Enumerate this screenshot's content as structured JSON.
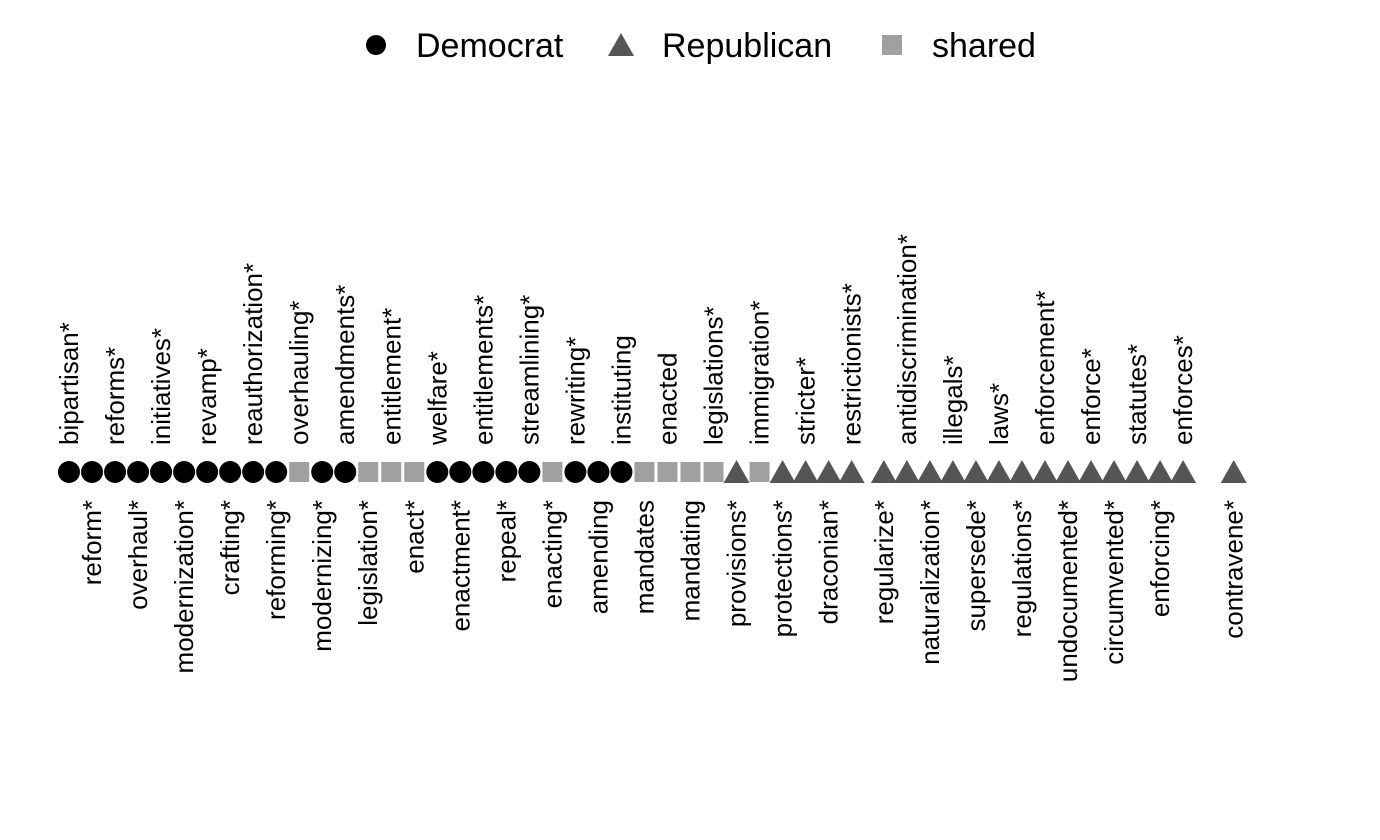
{
  "chart_data": {
    "type": "scatter",
    "title": "",
    "xlabel": "",
    "ylabel": "",
    "legend": {
      "placement": "top-center",
      "entries": [
        {
          "label": "Democrat",
          "shape": "circle",
          "color": "#000000"
        },
        {
          "label": "Republican",
          "shape": "triangle",
          "color": "#555555"
        },
        {
          "label": "shared",
          "shape": "square",
          "color": "#a0a0a0"
        }
      ]
    },
    "axis_ranges": {
      "x": [
        1,
        55
      ]
    },
    "grid": false,
    "points": [
      {
        "word": "bipartisan*",
        "party": "Democrat",
        "x": 1,
        "label_side": "above"
      },
      {
        "word": "reform*",
        "party": "Democrat",
        "x": 2,
        "label_side": "below"
      },
      {
        "word": "reforms*",
        "party": "Democrat",
        "x": 3,
        "label_side": "above"
      },
      {
        "word": "overhaul*",
        "party": "Democrat",
        "x": 4,
        "label_side": "below"
      },
      {
        "word": "initiatives*",
        "party": "Democrat",
        "x": 5,
        "label_side": "above"
      },
      {
        "word": "modernization*",
        "party": "Democrat",
        "x": 6,
        "label_side": "below"
      },
      {
        "word": "revamp*",
        "party": "Democrat",
        "x": 7,
        "label_side": "above"
      },
      {
        "word": "crafting*",
        "party": "Democrat",
        "x": 8,
        "label_side": "below"
      },
      {
        "word": "reauthorization*",
        "party": "Democrat",
        "x": 9,
        "label_side": "above"
      },
      {
        "word": "reforming*",
        "party": "Democrat",
        "x": 10,
        "label_side": "below"
      },
      {
        "word": "overhauling*",
        "party": "shared",
        "x": 11,
        "label_side": "above"
      },
      {
        "word": "modernizing*",
        "party": "Democrat",
        "x": 12,
        "label_side": "below"
      },
      {
        "word": "amendments*",
        "party": "Democrat",
        "x": 13,
        "label_side": "above"
      },
      {
        "word": "legislation*",
        "party": "shared",
        "x": 14,
        "label_side": "below"
      },
      {
        "word": "entitlement*",
        "party": "shared",
        "x": 15,
        "label_side": "above"
      },
      {
        "word": "enact*",
        "party": "shared",
        "x": 16,
        "label_side": "below"
      },
      {
        "word": "welfare*",
        "party": "Democrat",
        "x": 17,
        "label_side": "above"
      },
      {
        "word": "enactment*",
        "party": "Democrat",
        "x": 18,
        "label_side": "below"
      },
      {
        "word": "entitlements*",
        "party": "Democrat",
        "x": 19,
        "label_side": "above"
      },
      {
        "word": "repeal*",
        "party": "Democrat",
        "x": 20,
        "label_side": "below"
      },
      {
        "word": "streamlining*",
        "party": "Democrat",
        "x": 21,
        "label_side": "above"
      },
      {
        "word": "enacting*",
        "party": "shared",
        "x": 22,
        "label_side": "below"
      },
      {
        "word": "rewriting*",
        "party": "Democrat",
        "x": 23,
        "label_side": "above"
      },
      {
        "word": "amending",
        "party": "Democrat",
        "x": 24,
        "label_side": "below"
      },
      {
        "word": "instituting",
        "party": "Democrat",
        "x": 25,
        "label_side": "above"
      },
      {
        "word": "mandates",
        "party": "shared",
        "x": 26,
        "label_side": "below"
      },
      {
        "word": "enacted",
        "party": "shared",
        "x": 27,
        "label_side": "above"
      },
      {
        "word": "mandating",
        "party": "shared",
        "x": 28,
        "label_side": "below"
      },
      {
        "word": "legislations*",
        "party": "shared",
        "x": 29,
        "label_side": "above"
      },
      {
        "word": "provisions*",
        "party": "Republican",
        "x": 30,
        "label_side": "below"
      },
      {
        "word": "immigration*",
        "party": "shared",
        "x": 31,
        "label_side": "above"
      },
      {
        "word": "protections*",
        "party": "Republican",
        "x": 32,
        "label_side": "below"
      },
      {
        "word": "stricter*",
        "party": "Republican",
        "x": 33,
        "label_side": "above"
      },
      {
        "word": "draconian*",
        "party": "Republican",
        "x": 34,
        "label_side": "below"
      },
      {
        "word": "restrictionists*",
        "party": "Republican",
        "x": 35,
        "label_side": "above"
      },
      {
        "word": "regularize*",
        "party": "Republican",
        "x": 36.4,
        "label_side": "below"
      },
      {
        "word": "antidiscrimination*",
        "party": "Republican",
        "x": 37.4,
        "label_side": "above"
      },
      {
        "word": "naturalization*",
        "party": "Republican",
        "x": 38.4,
        "label_side": "below"
      },
      {
        "word": "illegals*",
        "party": "Republican",
        "x": 39.4,
        "label_side": "above"
      },
      {
        "word": "supersede*",
        "party": "Republican",
        "x": 40.4,
        "label_side": "below"
      },
      {
        "word": "laws*",
        "party": "Republican",
        "x": 41.4,
        "label_side": "above"
      },
      {
        "word": "regulations*",
        "party": "Republican",
        "x": 42.4,
        "label_side": "below"
      },
      {
        "word": "enforcement*",
        "party": "Republican",
        "x": 43.4,
        "label_side": "above"
      },
      {
        "word": "undocumented*",
        "party": "Republican",
        "x": 44.4,
        "label_side": "below"
      },
      {
        "word": "enforce*",
        "party": "Republican",
        "x": 45.4,
        "label_side": "above"
      },
      {
        "word": "circumvented*",
        "party": "Republican",
        "x": 46.4,
        "label_side": "below"
      },
      {
        "word": "statutes*",
        "party": "Republican",
        "x": 47.4,
        "label_side": "above"
      },
      {
        "word": "enforcing*",
        "party": "Republican",
        "x": 48.4,
        "label_side": "below"
      },
      {
        "word": "enforces*",
        "party": "Republican",
        "x": 49.4,
        "label_side": "above"
      },
      {
        "word": "contravene*",
        "party": "Republican",
        "x": 51.6,
        "label_side": "below"
      }
    ]
  }
}
